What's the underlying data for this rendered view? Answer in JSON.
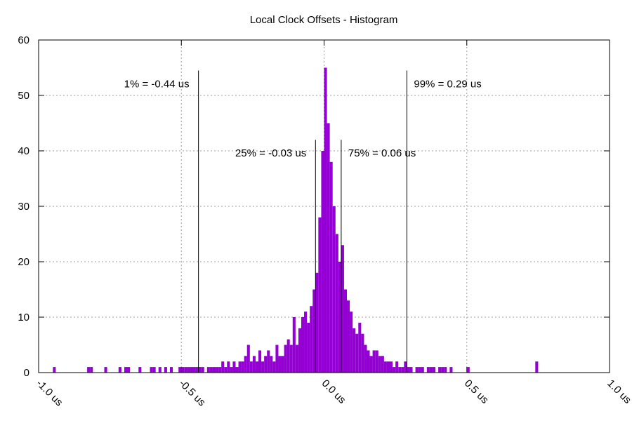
{
  "chart_data": {
    "type": "histogram",
    "title": "Local Clock Offsets - Histogram",
    "color": "#9400d3",
    "grid": true,
    "xlim": [
      -1,
      1
    ],
    "ylim": [
      0,
      60
    ],
    "xticks": [
      {
        "value": -1,
        "label": "-1.0 us"
      },
      {
        "value": -0.5,
        "label": "-0.5 us"
      },
      {
        "value": 0,
        "label": "0.0 us"
      },
      {
        "value": 0.5,
        "label": "0.5 us"
      },
      {
        "value": 1,
        "label": "1.0 us"
      }
    ],
    "yticks": [
      0,
      10,
      20,
      30,
      40,
      50,
      60
    ],
    "bins": [
      -1.0,
      -0.99,
      -0.98,
      -0.97,
      -0.96,
      -0.95,
      -0.94,
      -0.93,
      -0.92,
      -0.91,
      -0.9,
      -0.89,
      -0.88,
      -0.87,
      -0.86,
      -0.85,
      -0.84,
      -0.83,
      -0.82,
      -0.81,
      -0.8,
      -0.79,
      -0.78,
      -0.77,
      -0.76,
      -0.75,
      -0.74,
      -0.73,
      -0.72,
      -0.71,
      -0.7,
      -0.69,
      -0.68,
      -0.67,
      -0.66,
      -0.65,
      -0.64,
      -0.63,
      -0.62,
      -0.61,
      -0.6,
      -0.59,
      -0.58,
      -0.57,
      -0.56,
      -0.55,
      -0.54,
      -0.53,
      -0.52,
      -0.51,
      -0.5,
      -0.49,
      -0.48,
      -0.47,
      -0.46,
      -0.45,
      -0.44,
      -0.43,
      -0.42,
      -0.41,
      -0.4,
      -0.39,
      -0.38,
      -0.37,
      -0.36,
      -0.35,
      -0.34,
      -0.33,
      -0.32,
      -0.31,
      -0.3,
      -0.29,
      -0.28,
      -0.27,
      -0.26,
      -0.25,
      -0.24,
      -0.23,
      -0.22,
      -0.21,
      -0.2,
      -0.19,
      -0.18,
      -0.17,
      -0.16,
      -0.15,
      -0.14,
      -0.13,
      -0.12,
      -0.11,
      -0.1,
      -0.09,
      -0.08,
      -0.07,
      -0.06,
      -0.05,
      -0.04,
      -0.03,
      -0.02,
      -0.01,
      0.0,
      0.01,
      0.02,
      0.03,
      0.04,
      0.05,
      0.06,
      0.07,
      0.08,
      0.09,
      0.1,
      0.11,
      0.12,
      0.13,
      0.14,
      0.15,
      0.16,
      0.17,
      0.18,
      0.19,
      0.2,
      0.21,
      0.22,
      0.23,
      0.24,
      0.25,
      0.26,
      0.27,
      0.28,
      0.29,
      0.3,
      0.31,
      0.32,
      0.33,
      0.34,
      0.35,
      0.36,
      0.37,
      0.38,
      0.39,
      0.4,
      0.41,
      0.42,
      0.43,
      0.44,
      0.45,
      0.46,
      0.47,
      0.48,
      0.49,
      0.5,
      0.51,
      0.52,
      0.53,
      0.54,
      0.55,
      0.56,
      0.57,
      0.58,
      0.59,
      0.6,
      0.61,
      0.62,
      0.63,
      0.64,
      0.65,
      0.66,
      0.67,
      0.68,
      0.69,
      0.7,
      0.71,
      0.72,
      0.73,
      0.74,
      0.75,
      0.76,
      0.77,
      0.78,
      0.79,
      0.8,
      0.81,
      0.82,
      0.83,
      0.84,
      0.85,
      0.86,
      0.87,
      0.88,
      0.89,
      0.9,
      0.91,
      0.92,
      0.93,
      0.94,
      0.95,
      0.96,
      0.97,
      0.98,
      0.99,
      1.0
    ],
    "values": [
      0,
      0,
      0,
      0,
      0,
      1,
      0,
      0,
      0,
      0,
      0,
      0,
      0,
      0,
      0,
      0,
      0,
      1,
      1,
      0,
      0,
      0,
      0,
      1,
      0,
      0,
      0,
      0,
      1,
      0,
      1,
      1,
      0,
      0,
      0,
      1,
      0,
      0,
      0,
      1,
      1,
      0,
      1,
      0,
      1,
      0,
      1,
      0,
      0,
      1,
      1,
      1,
      1,
      1,
      1,
      1,
      1,
      1,
      0,
      1,
      1,
      1,
      1,
      1,
      2,
      1,
      2,
      1,
      2,
      1,
      2,
      2,
      3,
      5,
      2,
      3,
      2,
      4,
      2,
      3,
      4,
      3,
      2,
      5,
      3,
      3,
      5,
      6,
      5,
      10,
      5,
      8,
      10,
      11,
      9,
      12,
      15,
      18,
      28,
      40,
      55,
      45,
      38,
      30,
      25,
      20,
      23,
      15,
      13,
      11,
      8,
      7,
      9,
      7,
      5,
      4,
      3,
      4,
      4,
      3,
      3,
      2,
      2,
      2,
      1,
      2,
      1,
      1,
      2,
      1,
      1,
      0,
      1,
      1,
      1,
      0,
      1,
      1,
      1,
      0,
      1,
      1,
      1,
      0,
      1,
      0,
      0,
      0,
      0,
      0,
      1,
      0,
      0,
      0,
      0,
      0,
      0,
      0,
      0,
      0,
      0,
      0,
      0,
      0,
      0,
      0,
      0,
      0,
      0,
      0,
      0,
      0,
      0,
      0,
      2,
      0,
      0,
      0,
      0,
      0,
      0,
      0,
      0,
      0,
      0,
      0,
      0,
      0,
      0,
      0,
      0,
      0,
      0,
      0,
      0,
      0,
      0,
      0,
      0,
      0
    ],
    "annotations": [
      {
        "x": -0.44,
        "y": 54.5,
        "label": "1% = -0.44 us"
      },
      {
        "x": -0.03,
        "y": 42,
        "label": "25% = -0.03 us"
      },
      {
        "x": 0.06,
        "y": 42,
        "label": "75% = 0.06 us"
      },
      {
        "x": 0.29,
        "y": 54.5,
        "label": "99% = 0.29 us"
      }
    ]
  }
}
